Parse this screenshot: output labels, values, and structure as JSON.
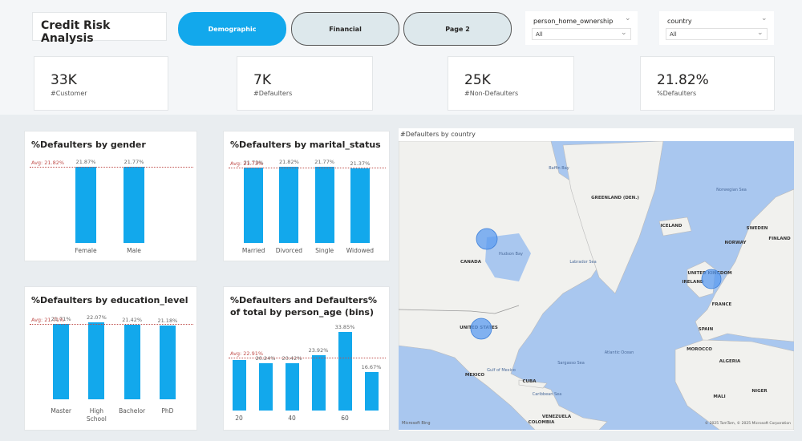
{
  "header": {
    "title": "Credit Risk Analysis",
    "tabs": [
      "Demographic",
      "Financial",
      "Page 2"
    ],
    "filters": [
      {
        "label": "person_home_ownership",
        "value": "All"
      },
      {
        "label": "country",
        "value": "All"
      }
    ]
  },
  "kpis": [
    {
      "value": "33K",
      "label": "#Customer"
    },
    {
      "value": "7K",
      "label": "#Defaulters"
    },
    {
      "value": "25K",
      "label": "#Non-Defaulters"
    },
    {
      "value": "21.82%",
      "label": "%Defaulters"
    }
  ],
  "chart_data": [
    {
      "type": "bar",
      "title": "%Defaulters by gender",
      "categories": [
        "Female",
        "Male"
      ],
      "values": [
        21.87,
        21.77
      ],
      "value_labels": [
        "21.87%",
        "21.77%"
      ],
      "average": {
        "value": 21.82,
        "label": "Avg: 21.82%"
      },
      "ylim": [
        0,
        23
      ],
      "color": "#12a8ec"
    },
    {
      "type": "bar",
      "title": "%Defaulters by marital_status",
      "categories": [
        "Married",
        "Divorced",
        "Single",
        "Widowed"
      ],
      "values": [
        21.73,
        21.82,
        21.77,
        21.37
      ],
      "value_labels": [
        "21.73%",
        "21.82%",
        "21.77%",
        "21.37%"
      ],
      "average": {
        "value": 21.73,
        "label": "Avg: 21.73%"
      },
      "ylim": [
        0,
        23
      ],
      "color": "#12a8ec"
    },
    {
      "type": "bar",
      "title": "%Defaulters by education_level",
      "categories": [
        "Master",
        "High School",
        "Bachelor",
        "PhD"
      ],
      "values": [
        21.71,
        22.07,
        21.42,
        21.18
      ],
      "value_labels": [
        "21.71%",
        "22.07%",
        "21.42%",
        "21.18%"
      ],
      "average": {
        "value": 21.71,
        "label": "Avg: 21.71%"
      },
      "ylim": [
        0,
        23
      ],
      "color": "#12a8ec"
    },
    {
      "type": "bar",
      "title": "%Defaulters and Defaulters% of total by person_age (bins)",
      "x": [
        20,
        30,
        40,
        50,
        60,
        70
      ],
      "values": [
        21.7,
        20.24,
        20.42,
        23.92,
        33.85,
        16.67
      ],
      "value_labels": [
        null,
        "20.24%",
        "20.42%",
        "23.92%",
        "33.85%",
        "16.67%"
      ],
      "average": {
        "value": 22.91,
        "label": "Avg: 22.91%"
      },
      "xlim": [
        15,
        75
      ],
      "xticks": [
        20,
        40,
        60
      ],
      "ylim": [
        0,
        35
      ],
      "color": "#12a8ec"
    }
  ],
  "map": {
    "title": "#Defaulters by country",
    "labels": [
      "Baffin Bay",
      "GREENLAND (DEN.)",
      "ICELAND",
      "Norwegian Sea",
      "CANADA",
      "Hudson Bay",
      "Labrador Sea",
      "UNITED STATES",
      "Atlantic Ocean",
      "Gulf of Mexico",
      "MEXICO",
      "Sargasso Sea",
      "Caribbean Sea",
      "CUBA",
      "VENEZUELA",
      "COLOMBIA",
      "NORWAY",
      "SWEDEN",
      "FINLAND",
      "UNITED KINGDOM",
      "IRELAND",
      "FRANCE",
      "SPAIN",
      "MOROCCO",
      "ALGERIA",
      "MALI",
      "NIGER"
    ],
    "logo": "Microsoft Bing",
    "attribution": "© 2025 TomTom, © 2025 Microsoft Corporation"
  }
}
